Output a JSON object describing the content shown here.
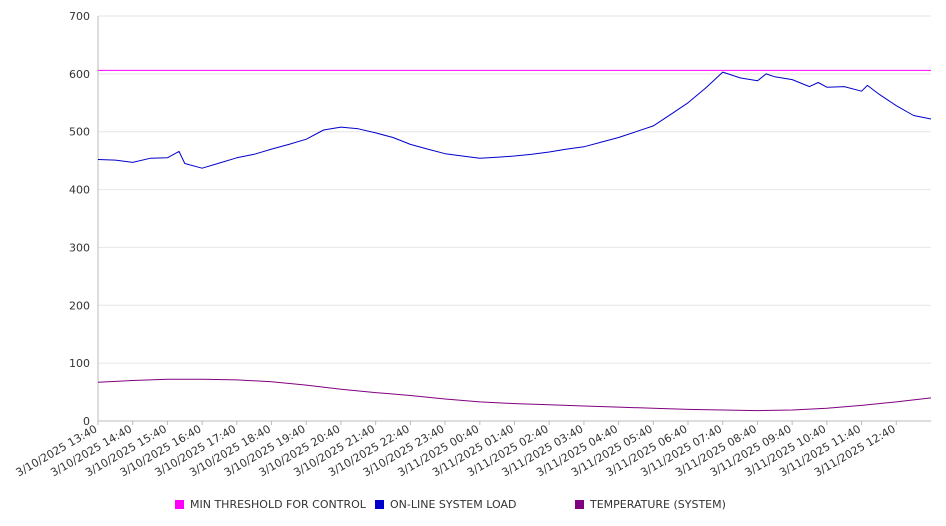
{
  "chart_data": {
    "type": "line",
    "title": "",
    "xlabel": "",
    "ylabel": "",
    "ylim": [
      0,
      700
    ],
    "y_ticks": [
      0,
      100,
      200,
      300,
      400,
      500,
      600,
      700
    ],
    "x_tick_labels": [
      "3/10/2025 13:40",
      "3/10/2025 14:40",
      "3/10/2025 15:40",
      "3/10/2025 16:40",
      "3/10/2025 17:40",
      "3/10/2025 18:40",
      "3/10/2025 19:40",
      "3/10/2025 20:40",
      "3/10/2025 21:40",
      "3/10/2025 22:40",
      "3/10/2025 23:40",
      "3/11/2025 00:40",
      "3/11/2025 01:40",
      "3/11/2025 02:40",
      "3/11/2025 03:40",
      "3/11/2025 04:40",
      "3/11/2025 05:40",
      "3/11/2025 06:40",
      "3/11/2025 07:40",
      "3/11/2025 08:40",
      "3/11/2025 09:40",
      "3/11/2025 10:40",
      "3/11/2025 11:40",
      "3/11/2025 12:40"
    ],
    "x_start": "3/10/2025 13:40",
    "x_end": "3/11/2025 13:40",
    "grid": true,
    "legend_position": "bottom",
    "series": [
      {
        "name": "MIN THRESHOLD FOR CONTROL",
        "color": "#ff00ff",
        "points": [
          [
            "3/10/2025 13:40",
            606
          ],
          [
            "3/11/2025 13:40",
            606
          ]
        ]
      },
      {
        "name": "ON-LINE SYSTEM LOAD",
        "color": "#0000cc",
        "points": [
          [
            "3/10/2025 13:40",
            452
          ],
          [
            "3/10/2025 14:10",
            451
          ],
          [
            "3/10/2025 14:40",
            447
          ],
          [
            "3/10/2025 15:10",
            454
          ],
          [
            "3/10/2025 15:40",
            455
          ],
          [
            "3/10/2025 16:00",
            466
          ],
          [
            "3/10/2025 16:10",
            445
          ],
          [
            "3/10/2025 16:40",
            437
          ],
          [
            "3/10/2025 17:10",
            446
          ],
          [
            "3/10/2025 17:40",
            455
          ],
          [
            "3/10/2025 18:10",
            461
          ],
          [
            "3/10/2025 18:40",
            470
          ],
          [
            "3/10/2025 19:10",
            478
          ],
          [
            "3/10/2025 19:40",
            487
          ],
          [
            "3/10/2025 20:10",
            503
          ],
          [
            "3/10/2025 20:40",
            508
          ],
          [
            "3/10/2025 21:10",
            505
          ],
          [
            "3/10/2025 21:40",
            498
          ],
          [
            "3/10/2025 22:10",
            490
          ],
          [
            "3/10/2025 22:40",
            478
          ],
          [
            "3/10/2025 23:10",
            470
          ],
          [
            "3/10/2025 23:40",
            462
          ],
          [
            "3/11/2025 00:10",
            458
          ],
          [
            "3/11/2025 00:40",
            454
          ],
          [
            "3/11/2025 01:10",
            456
          ],
          [
            "3/11/2025 01:40",
            458
          ],
          [
            "3/11/2025 02:10",
            461
          ],
          [
            "3/11/2025 02:40",
            465
          ],
          [
            "3/11/2025 03:10",
            470
          ],
          [
            "3/11/2025 03:40",
            474
          ],
          [
            "3/11/2025 04:10",
            482
          ],
          [
            "3/11/2025 04:40",
            490
          ],
          [
            "3/11/2025 05:10",
            500
          ],
          [
            "3/11/2025 05:40",
            510
          ],
          [
            "3/11/2025 06:10",
            530
          ],
          [
            "3/11/2025 06:40",
            550
          ],
          [
            "3/11/2025 07:10",
            575
          ],
          [
            "3/11/2025 07:40",
            603
          ],
          [
            "3/11/2025 08:10",
            593
          ],
          [
            "3/11/2025 08:40",
            588
          ],
          [
            "3/11/2025 08:55",
            600
          ],
          [
            "3/11/2025 09:10",
            595
          ],
          [
            "3/11/2025 09:40",
            590
          ],
          [
            "3/11/2025 10:10",
            578
          ],
          [
            "3/11/2025 10:25",
            585
          ],
          [
            "3/11/2025 10:40",
            577
          ],
          [
            "3/11/2025 11:10",
            578
          ],
          [
            "3/11/2025 11:40",
            570
          ],
          [
            "3/11/2025 11:50",
            580
          ],
          [
            "3/11/2025 12:10",
            565
          ],
          [
            "3/11/2025 12:40",
            545
          ],
          [
            "3/11/2025 13:10",
            528
          ],
          [
            "3/11/2025 13:40",
            522
          ]
        ]
      },
      {
        "name": "TEMPERATURE (SYSTEM)",
        "color": "#800080",
        "points": [
          [
            "3/10/2025 13:40",
            67
          ],
          [
            "3/10/2025 14:40",
            70
          ],
          [
            "3/10/2025 15:40",
            72
          ],
          [
            "3/10/2025 16:40",
            72
          ],
          [
            "3/10/2025 17:40",
            71
          ],
          [
            "3/10/2025 18:40",
            68
          ],
          [
            "3/10/2025 19:40",
            62
          ],
          [
            "3/10/2025 20:40",
            55
          ],
          [
            "3/10/2025 21:40",
            49
          ],
          [
            "3/10/2025 22:40",
            44
          ],
          [
            "3/10/2025 23:40",
            38
          ],
          [
            "3/11/2025 00:40",
            33
          ],
          [
            "3/11/2025 01:40",
            30
          ],
          [
            "3/11/2025 02:40",
            28
          ],
          [
            "3/11/2025 03:40",
            26
          ],
          [
            "3/11/2025 04:40",
            24
          ],
          [
            "3/11/2025 05:40",
            22
          ],
          [
            "3/11/2025 06:40",
            20
          ],
          [
            "3/11/2025 07:40",
            19
          ],
          [
            "3/11/2025 08:40",
            18
          ],
          [
            "3/11/2025 09:40",
            19
          ],
          [
            "3/11/2025 10:40",
            22
          ],
          [
            "3/11/2025 11:40",
            27
          ],
          [
            "3/11/2025 12:40",
            33
          ],
          [
            "3/11/2025 13:40",
            40
          ]
        ]
      }
    ]
  },
  "legend": {
    "items": [
      {
        "label": "MIN THRESHOLD FOR CONTROL",
        "color": "#ff00ff"
      },
      {
        "label": "ON-LINE SYSTEM LOAD",
        "color": "#0000cc"
      },
      {
        "label": "TEMPERATURE (SYSTEM)",
        "color": "#800080"
      }
    ]
  }
}
